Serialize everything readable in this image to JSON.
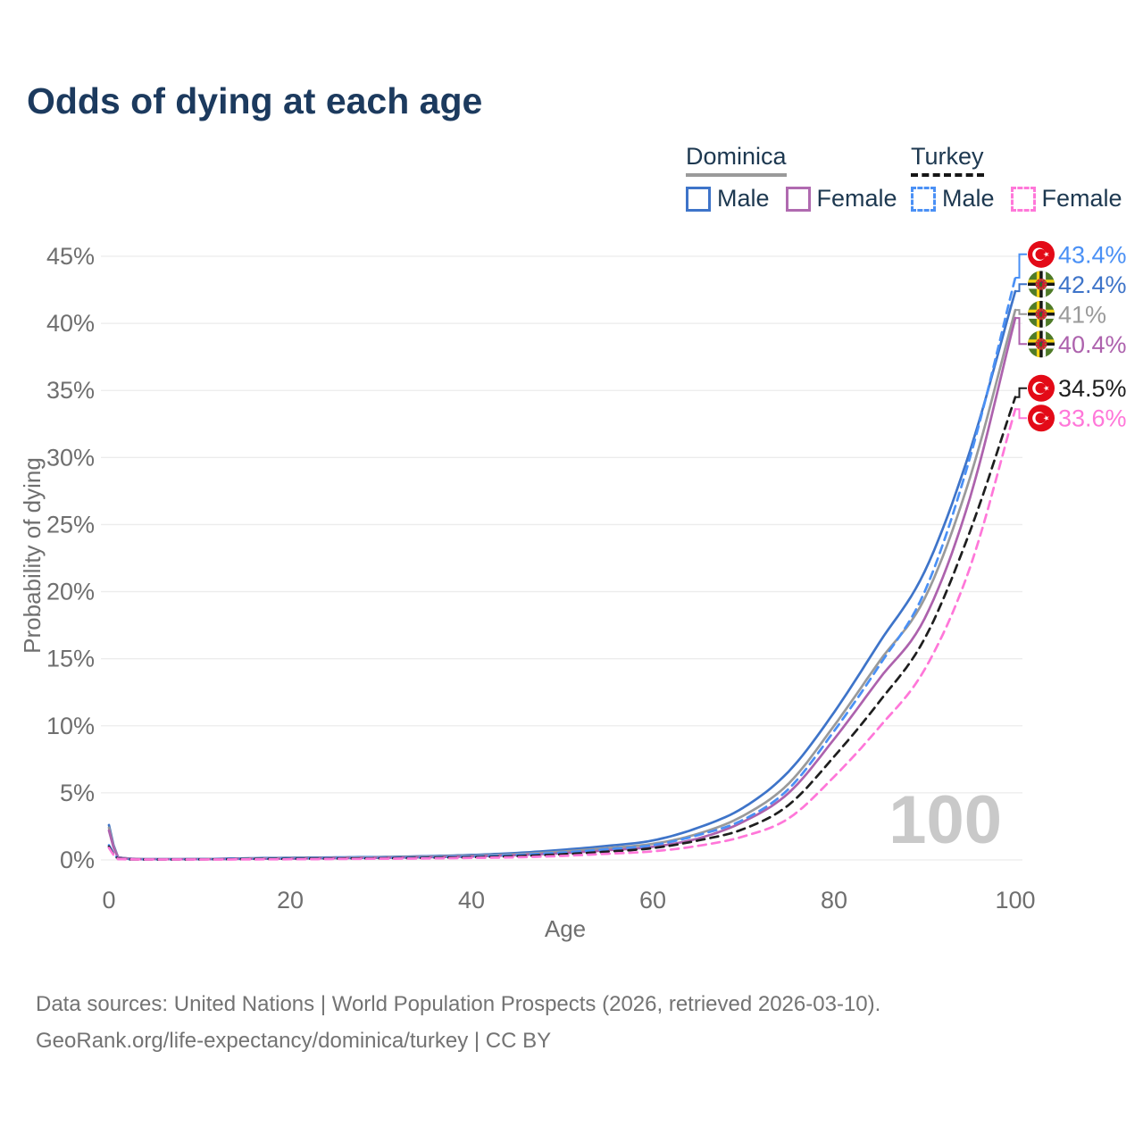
{
  "title": "Odds of dying at each age",
  "legend": {
    "groups": [
      {
        "country": "Dominica",
        "line_style": "solid",
        "line_color": "#9a9a9a",
        "items": [
          {
            "label": "Male",
            "color": "#3e74c9",
            "style": "solid"
          },
          {
            "label": "Female",
            "color": "#b06ab0",
            "style": "solid"
          }
        ]
      },
      {
        "country": "Turkey",
        "line_style": "dashed",
        "line_color": "#161616",
        "items": [
          {
            "label": "Male",
            "color": "#4a90f5",
            "style": "dashed"
          },
          {
            "label": "Female",
            "color": "#ff77d9",
            "style": "dashed"
          }
        ]
      }
    ]
  },
  "axes": {
    "y_title": "Probability of dying",
    "x_title": "Age",
    "y_ticks": [
      "0%",
      "5%",
      "10%",
      "15%",
      "20%",
      "25%",
      "30%",
      "35%",
      "40%",
      "45%"
    ],
    "x_ticks": [
      0,
      20,
      40,
      60,
      80,
      100
    ]
  },
  "watermark": "100",
  "footer": {
    "line1": "Data sources: United Nations | World Population Prospects (2026, retrieved 2026-03-10).",
    "line2": "GeoRank.org/life-expectancy/dominica/turkey | CC BY"
  },
  "chart_data": {
    "type": "line",
    "title": "Odds of dying at each age",
    "xlabel": "Age",
    "ylabel": "Probability of dying",
    "x_range": [
      0,
      100
    ],
    "y_range_percent": [
      0,
      45
    ],
    "grid": "horizontal",
    "x": [
      0,
      1,
      5,
      10,
      15,
      20,
      25,
      30,
      35,
      40,
      45,
      50,
      55,
      60,
      65,
      70,
      75,
      80,
      85,
      90,
      95,
      100
    ],
    "series": [
      {
        "name": "Dominica Male",
        "country": "Dominica",
        "sex": "Male",
        "style": "solid",
        "color": "#3e74c9",
        "flag": "dominica",
        "end_label": "42.4%",
        "end_value": 42.4,
        "values": [
          2.6,
          0.2,
          0.06,
          0.07,
          0.12,
          0.16,
          0.19,
          0.22,
          0.28,
          0.37,
          0.52,
          0.75,
          1.05,
          1.45,
          2.4,
          3.9,
          6.6,
          11.0,
          16.2,
          21.5,
          30.5,
          42.4
        ]
      },
      {
        "name": "Dominica Both sexes",
        "country": "Dominica",
        "sex": "Both",
        "style": "solid",
        "color": "#9a9a9a",
        "flag": "dominica",
        "end_label": "41%",
        "end_value": 41.0,
        "values": [
          2.4,
          0.18,
          0.05,
          0.06,
          0.1,
          0.13,
          0.16,
          0.19,
          0.24,
          0.31,
          0.43,
          0.62,
          0.88,
          1.2,
          1.95,
          3.3,
          5.7,
          10.0,
          14.8,
          19.5,
          28.5,
          41.0
        ]
      },
      {
        "name": "Dominica Female",
        "country": "Dominica",
        "sex": "Female",
        "style": "solid",
        "color": "#ad62ad",
        "flag": "dominica",
        "end_label": "40.4%",
        "end_value": 40.4,
        "values": [
          2.2,
          0.16,
          0.05,
          0.05,
          0.08,
          0.1,
          0.13,
          0.16,
          0.2,
          0.26,
          0.36,
          0.5,
          0.72,
          0.98,
          1.6,
          2.85,
          5.0,
          9.0,
          13.5,
          18.0,
          27.0,
          40.4
        ]
      },
      {
        "name": "Turkey Male",
        "country": "Turkey",
        "sex": "Male",
        "style": "dashed",
        "color": "#4a90f5",
        "flag": "turkey",
        "end_label": "43.4%",
        "end_value": 43.4,
        "values": [
          1.1,
          0.08,
          0.04,
          0.05,
          0.08,
          0.11,
          0.13,
          0.15,
          0.19,
          0.26,
          0.37,
          0.55,
          0.8,
          1.1,
          1.85,
          3.0,
          5.3,
          9.6,
          14.5,
          20.0,
          30.0,
          43.4
        ]
      },
      {
        "name": "Turkey Both sexes",
        "country": "Turkey",
        "sex": "Both",
        "style": "dashed",
        "color": "#1e1e1e",
        "flag": "turkey",
        "end_label": "34.5%",
        "end_value": 34.5,
        "values": [
          1.0,
          0.07,
          0.03,
          0.04,
          0.06,
          0.08,
          0.1,
          0.12,
          0.15,
          0.2,
          0.28,
          0.42,
          0.62,
          0.88,
          1.45,
          2.3,
          4.1,
          7.7,
          11.8,
          16.5,
          24.5,
          34.5
        ]
      },
      {
        "name": "Turkey Female",
        "country": "Turkey",
        "sex": "Female",
        "style": "dashed",
        "color": "#ff77d9",
        "flag": "turkey",
        "end_label": "33.6%",
        "end_value": 33.6,
        "values": [
          0.9,
          0.06,
          0.03,
          0.03,
          0.04,
          0.05,
          0.07,
          0.09,
          0.11,
          0.15,
          0.2,
          0.3,
          0.46,
          0.64,
          1.05,
          1.75,
          3.1,
          6.2,
          9.9,
          14.2,
          21.8,
          33.6
        ]
      }
    ]
  }
}
